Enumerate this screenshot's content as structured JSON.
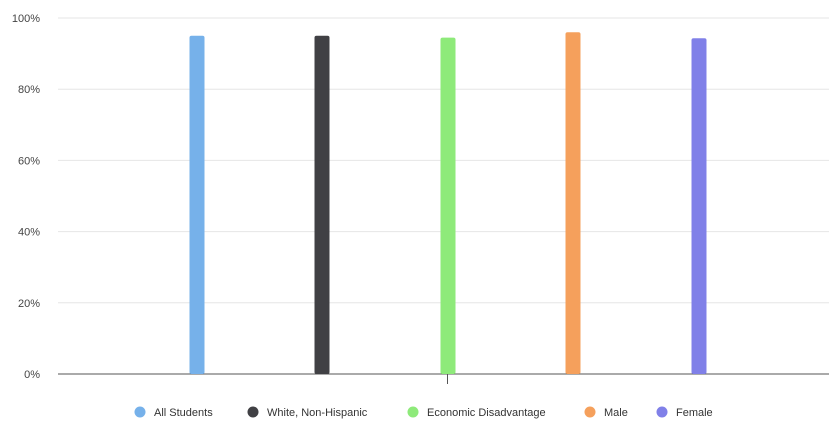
{
  "chart_data": {
    "type": "bar",
    "categories": [
      ""
    ],
    "series": [
      {
        "name": "All Students",
        "values": [
          95
        ],
        "color": "#76b1ea"
      },
      {
        "name": "White, Non-Hispanic",
        "values": [
          95
        ],
        "color": "#404044"
      },
      {
        "name": "Economic Disadvantage",
        "values": [
          94.5
        ],
        "color": "#8eea7a"
      },
      {
        "name": "Male",
        "values": [
          96
        ],
        "color": "#f5a05c"
      },
      {
        "name": "Female",
        "values": [
          94.3
        ],
        "color": "#8080e8"
      }
    ],
    "yticks": [
      "0%",
      "20%",
      "40%",
      "60%",
      "80%",
      "100%"
    ],
    "ylim": [
      0,
      100
    ],
    "title": "",
    "xlabel": "",
    "ylabel": "",
    "grid": true,
    "legend_position": "bottom"
  }
}
